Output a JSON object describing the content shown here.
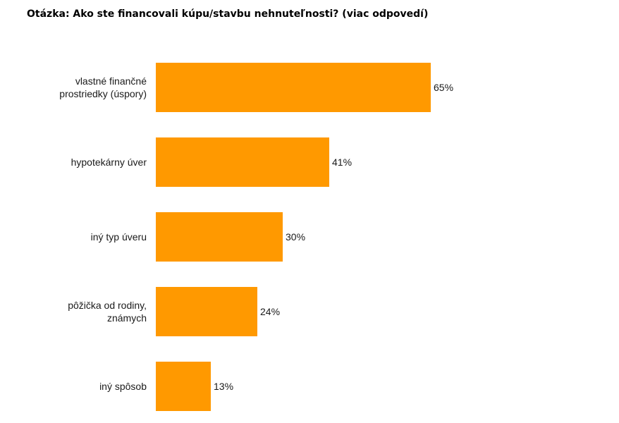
{
  "chart_data": {
    "type": "bar",
    "orientation": "horizontal",
    "title": "Otázka: Ako ste financovali kúpu/stavbu nehnuteľnosti? (viac odpovedí)",
    "categories": [
      [
        "vlastné finančné",
        "prostriedky (úspory)"
      ],
      [
        "hypotekárny úver"
      ],
      [
        "iný typ úveru"
      ],
      [
        "pôžička od rodiny,",
        "známych"
      ],
      [
        "iný spôsob"
      ]
    ],
    "values": [
      65,
      41,
      30,
      24,
      13
    ],
    "value_labels": [
      "65%",
      "41%",
      "30%",
      "24%",
      "13%"
    ],
    "xlim": [
      0,
      100
    ],
    "grid": false,
    "legend": "none",
    "bar_color": "#ff9900"
  }
}
